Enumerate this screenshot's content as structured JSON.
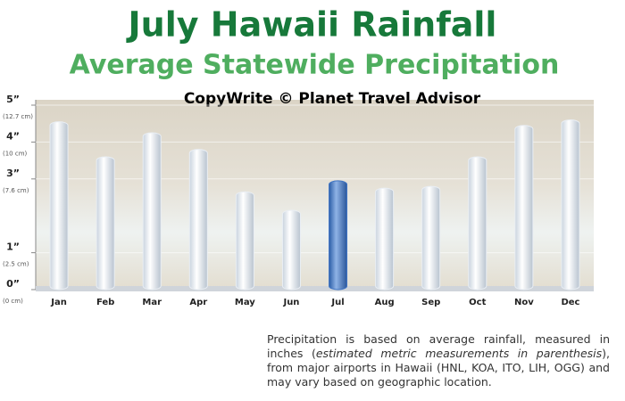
{
  "chart_data": {
    "type": "bar",
    "title": "July Hawaii Rainfall",
    "subtitle": "Average Statewide Precipitation",
    "copyright": "CopyWrite © Planet Travel Advisor",
    "categories": [
      "Jan",
      "Feb",
      "Mar",
      "Apr",
      "May",
      "Jun",
      "Jul",
      "Aug",
      "Sep",
      "Oct",
      "Nov",
      "Dec"
    ],
    "values": [
      4.55,
      3.6,
      4.25,
      3.8,
      2.65,
      2.15,
      2.95,
      2.75,
      2.8,
      3.6,
      4.45,
      4.6
    ],
    "color": "#e9eef4",
    "highlight": {
      "category": "Jul",
      "color": "#3f74c4"
    },
    "ylim": [
      0,
      5
    ],
    "yticks": [
      {
        "value": 0,
        "label": "0”"
      },
      {
        "value": 1,
        "label": "1”"
      },
      {
        "value": 3,
        "label": "3”"
      },
      {
        "value": 4,
        "label": "4”"
      },
      {
        "value": 5,
        "label": "5”"
      }
    ],
    "ytick_metric_labels": [
      "(0 cm)",
      "(2.5 cm)",
      "(7.6 cm)",
      "(10 cm)",
      "(12.7 cm)"
    ],
    "grid": true,
    "note": {
      "before": "Precipitation is based on average rainfall, measured in inches (",
      "italic": "estimated metric measurements in parenthesis",
      "after": "), from major airports in Hawaii (HNL, KOA, ITO, LIH, OGG) and may vary based on geographic location."
    }
  }
}
